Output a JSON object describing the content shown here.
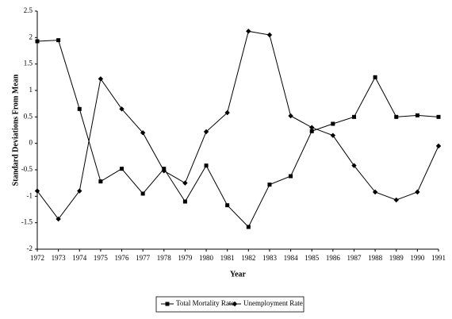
{
  "chart_data": {
    "type": "line",
    "x_label": "Year",
    "y_label": "Standard Deviations From Mean",
    "x": [
      1972,
      1973,
      1974,
      1975,
      1976,
      1977,
      1978,
      1979,
      1980,
      1981,
      1982,
      1983,
      1984,
      1985,
      1986,
      1987,
      1988,
      1989,
      1990,
      1991
    ],
    "xlim": [
      1972,
      1991
    ],
    "xticks": [
      1972,
      1973,
      1974,
      1975,
      1976,
      1977,
      1978,
      1979,
      1980,
      1981,
      1982,
      1983,
      1984,
      1985,
      1986,
      1987,
      1988,
      1989,
      1990,
      1991
    ],
    "ylim": [
      -2,
      2.5
    ],
    "yticks": [
      -2,
      -1.5,
      -1,
      -0.5,
      0,
      0.5,
      1,
      1.5,
      2,
      2.5
    ],
    "legend": "bottom",
    "series": [
      {
        "name": "Total Mortality Rate",
        "color": "#000000",
        "marker": "square",
        "values": [
          1.93,
          1.95,
          0.65,
          -0.72,
          -0.48,
          -0.95,
          -0.48,
          -1.1,
          -0.42,
          -1.17,
          -1.58,
          -0.78,
          -0.62,
          0.23,
          0.37,
          0.5,
          1.25,
          0.5,
          0.53,
          0.5
        ]
      },
      {
        "name": "Unemployment Rate",
        "color": "#000000",
        "marker": "diamond",
        "values": [
          -0.9,
          -1.43,
          -0.9,
          1.22,
          0.65,
          0.2,
          -0.52,
          -0.75,
          0.22,
          0.58,
          2.12,
          2.05,
          0.52,
          0.3,
          0.15,
          -0.42,
          -0.92,
          -1.07,
          -0.92,
          -0.05
        ]
      }
    ]
  }
}
